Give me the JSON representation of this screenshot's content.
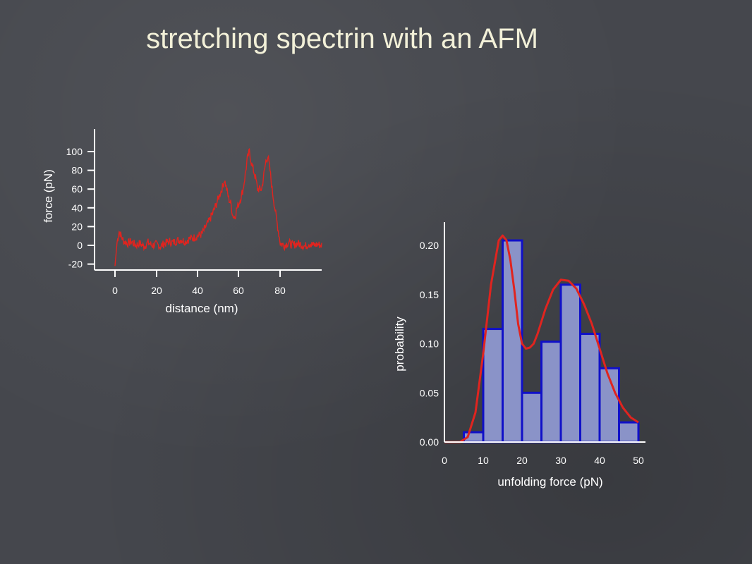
{
  "slide": {
    "title": "stretching spectrin with an AFM"
  },
  "colors": {
    "background": "#45474d",
    "title": "#f2f0d8",
    "axis": "#ffffff",
    "trace": "#e0241f",
    "bar_fill": "#8a93c8",
    "bar_edge": "#1010c8",
    "fit": "#e0241f"
  },
  "chart_data": [
    {
      "type": "line",
      "xlabel": "distance (nm)",
      "ylabel": "force (pN)",
      "x_ticks": [
        "0",
        "20",
        "40",
        "60",
        "80"
      ],
      "y_ticks": [
        "-20",
        "0",
        "20",
        "40",
        "60",
        "80",
        "100"
      ],
      "y_tick_values": [
        -20,
        0,
        20,
        40,
        60,
        80,
        100
      ],
      "xlim": [
        0,
        100
      ],
      "ylim": [
        -25,
        125
      ],
      "grid": false,
      "series": [
        {
          "x": [
            0,
            1,
            2,
            4,
            6,
            8,
            10,
            12,
            14,
            16,
            18,
            20,
            22,
            24,
            26,
            28,
            30,
            32,
            34,
            36,
            38,
            40,
            42,
            44,
            46,
            48,
            50,
            52,
            53,
            54,
            55,
            56,
            57,
            58,
            59,
            60,
            61,
            62,
            63,
            64,
            65,
            66,
            67,
            68,
            69,
            70,
            71,
            72,
            73,
            74,
            75,
            76,
            78,
            80,
            82,
            84,
            86,
            88,
            90,
            92,
            94,
            96,
            98,
            100
          ],
          "y": [
            -22,
            3,
            15,
            5,
            2,
            4,
            0,
            2,
            -1,
            3,
            0,
            1,
            -1,
            2,
            4,
            3,
            5,
            6,
            4,
            7,
            8,
            10,
            12,
            20,
            28,
            38,
            50,
            62,
            70,
            60,
            50,
            45,
            32,
            30,
            40,
            45,
            52,
            60,
            75,
            92,
            100,
            88,
            80,
            72,
            60,
            60,
            60,
            75,
            90,
            95,
            80,
            60,
            30,
            2,
            0,
            3,
            0,
            2,
            1,
            -1,
            2,
            0,
            1,
            0
          ]
        }
      ]
    },
    {
      "type": "bar",
      "xlabel": "unfolding force (pN)",
      "ylabel": "probability",
      "x_ticks": [
        "0",
        "10",
        "20",
        "30",
        "40",
        "50"
      ],
      "x_tick_values": [
        0,
        10,
        20,
        30,
        40,
        50
      ],
      "y_ticks": [
        "0.00",
        "0.05",
        "0.10",
        "0.15",
        "0.20"
      ],
      "y_tick_values": [
        0.0,
        0.05,
        0.1,
        0.15,
        0.2
      ],
      "xlim": [
        0,
        50
      ],
      "ylim": [
        0,
        0.22
      ],
      "grid": false,
      "bin_edges": [
        0,
        5,
        10,
        15,
        20,
        25,
        30,
        35,
        40,
        45,
        50
      ],
      "values": [
        0.0,
        0.01,
        0.115,
        0.205,
        0.05,
        0.102,
        0.16,
        0.11,
        0.075,
        0.02
      ],
      "fit_curve": {
        "x": [
          0,
          2,
          4,
          6,
          8,
          10,
          12,
          14,
          15,
          16,
          17,
          18,
          19,
          20,
          21,
          22,
          23,
          24,
          26,
          28,
          30,
          32,
          34,
          36,
          38,
          40,
          42,
          44,
          46,
          48,
          50
        ],
        "y": [
          0.0,
          0.0,
          0.0,
          0.005,
          0.03,
          0.09,
          0.16,
          0.205,
          0.21,
          0.205,
          0.185,
          0.155,
          0.12,
          0.1,
          0.095,
          0.096,
          0.1,
          0.11,
          0.135,
          0.155,
          0.165,
          0.164,
          0.156,
          0.14,
          0.12,
          0.095,
          0.07,
          0.05,
          0.035,
          0.025,
          0.02
        ]
      }
    }
  ]
}
